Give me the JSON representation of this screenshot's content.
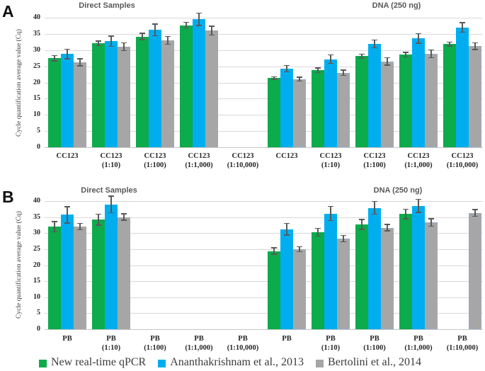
{
  "figure": {
    "panel_a_label": "A",
    "panel_b_label": "B"
  },
  "legend": {
    "items": [
      {
        "label": "New real-time qPCR",
        "color": "#0cab4c"
      },
      {
        "label": "Ananthakrishnam et al., 2013",
        "color": "#00aeef"
      },
      {
        "label": "Bertolini et al., 2014",
        "color": "#a6a6a6"
      }
    ]
  },
  "colors": {
    "green": "#0cab4c",
    "blue": "#00aeef",
    "gray": "#a6a6a6",
    "error_bar": "#595959",
    "gridline": "#d9d9d9",
    "section_title": "#595959"
  },
  "chart_data": [
    {
      "type": "bar",
      "panel_label": "A",
      "section_titles": [
        "Direct Samples",
        "DNA (250 ng)"
      ],
      "ylabel": "Cycle quantification average value (Cq)",
      "ylim": [
        0,
        40
      ],
      "yticks": [
        0,
        5,
        10,
        15,
        20,
        25,
        30,
        35,
        40
      ],
      "grid": true,
      "legend_position": "bottom",
      "categories": [
        {
          "name": "CC123",
          "dilution": "",
          "section": "Direct Samples",
          "dotted": false
        },
        {
          "name": "CC123",
          "dilution": "(1:10)",
          "section": "Direct Samples",
          "dotted": false
        },
        {
          "name": "CC123",
          "dilution": "(1:100)",
          "section": "Direct Samples",
          "dotted": false
        },
        {
          "name": "CC123",
          "dilution": "(1:1,000)",
          "section": "Direct Samples",
          "dotted": false
        },
        {
          "name": "CC123",
          "dilution": "(1:10,000)",
          "section": "Direct Samples",
          "dotted": false
        },
        {
          "name": "CC123",
          "dilution": "",
          "section": "DNA (250 ng)",
          "dotted": true
        },
        {
          "name": "CC123",
          "dilution": "(1:10)",
          "section": "DNA (250 ng)",
          "dotted": true
        },
        {
          "name": "CC123",
          "dilution": "(1:100)",
          "section": "DNA (250 ng)",
          "dotted": true
        },
        {
          "name": "CC123",
          "dilution": "(1:1,000)",
          "section": "DNA (250 ng)",
          "dotted": true
        },
        {
          "name": "CC123",
          "dilution": "(1:10,000)",
          "section": "DNA (250 ng)",
          "dotted": true
        }
      ],
      "series": [
        {
          "name": "New real-time qPCR",
          "color": "#0cab4c",
          "values": [
            27.5,
            32.1,
            34.2,
            37.7,
            null,
            21.4,
            23.8,
            28.1,
            28.6,
            31.9
          ],
          "errors": [
            0.8,
            0.7,
            1.0,
            0.9,
            null,
            0.4,
            0.7,
            0.6,
            0.7,
            0.6
          ]
        },
        {
          "name": "Ananthakrishnam et al., 2013",
          "color": "#00aeef",
          "values": [
            28.8,
            32.7,
            36.2,
            39.5,
            null,
            24.3,
            27.2,
            31.9,
            33.6,
            37.0
          ],
          "errors": [
            1.5,
            1.6,
            1.8,
            1.9,
            null,
            1.0,
            1.3,
            1.2,
            1.5,
            1.5
          ]
        },
        {
          "name": "Bertolini et al., 2014",
          "color": "#a6a6a6",
          "values": [
            26.2,
            31.0,
            33.0,
            36.0,
            null,
            21.0,
            23.0,
            26.5,
            28.9,
            31.2
          ],
          "errors": [
            1.1,
            1.2,
            1.2,
            1.4,
            null,
            0.6,
            0.8,
            1.1,
            1.2,
            1.0
          ]
        }
      ]
    },
    {
      "type": "bar",
      "panel_label": "B",
      "section_titles": [
        "Direct Samples",
        "DNA (250 ng)"
      ],
      "ylabel": "Cycle quantification average value (Cq)",
      "ylim": [
        0,
        40
      ],
      "yticks": [
        0,
        5,
        10,
        15,
        20,
        25,
        30,
        35,
        40
      ],
      "grid": true,
      "legend_position": "bottom",
      "categories": [
        {
          "name": "PB",
          "dilution": "",
          "section": "Direct Samples",
          "dotted": false
        },
        {
          "name": "PB",
          "dilution": "(1:10)",
          "section": "Direct Samples",
          "dotted": false
        },
        {
          "name": "PB",
          "dilution": "(1:100)",
          "section": "Direct Samples",
          "dotted": false
        },
        {
          "name": "PB",
          "dilution": "(1:1,000)",
          "section": "Direct Samples",
          "dotted": false
        },
        {
          "name": "PB",
          "dilution": "(1:10,000)",
          "section": "Direct Samples",
          "dotted": false
        },
        {
          "name": "PB",
          "dilution": "",
          "section": "DNA (250 ng)",
          "dotted": true
        },
        {
          "name": "PB",
          "dilution": "(1:10)",
          "section": "DNA (250 ng)",
          "dotted": true
        },
        {
          "name": "PB",
          "dilution": "(1:100)",
          "section": "DNA (250 ng)",
          "dotted": true
        },
        {
          "name": "PB",
          "dilution": "(1:1,000)",
          "section": "DNA (250 ng)",
          "dotted": true
        },
        {
          "name": "PB",
          "dilution": "(1:10,000)",
          "section": "DNA (250 ng)",
          "dotted": true
        }
      ],
      "series": [
        {
          "name": "New real-time qPCR",
          "color": "#0cab4c",
          "values": [
            32.0,
            34.2,
            null,
            null,
            null,
            24.4,
            30.3,
            32.7,
            36.0,
            null
          ],
          "errors": [
            1.6,
            1.7,
            null,
            null,
            null,
            1.0,
            1.2,
            1.5,
            1.5,
            null
          ]
        },
        {
          "name": "Ananthakrishnam et al., 2013",
          "color": "#00aeef",
          "values": [
            35.7,
            38.9,
            null,
            null,
            null,
            31.2,
            36.1,
            37.9,
            38.5,
            null
          ],
          "errors": [
            2.5,
            2.6,
            null,
            null,
            null,
            1.8,
            2.2,
            2.0,
            2.0,
            null
          ]
        },
        {
          "name": "Bertolini et al., 2014",
          "color": "#a6a6a6",
          "values": [
            32.0,
            35.0,
            null,
            null,
            null,
            25.0,
            28.3,
            31.7,
            33.3,
            36.3
          ],
          "errors": [
            1.0,
            1.0,
            null,
            null,
            null,
            0.8,
            1.0,
            1.0,
            1.2,
            1.0
          ]
        }
      ]
    }
  ]
}
